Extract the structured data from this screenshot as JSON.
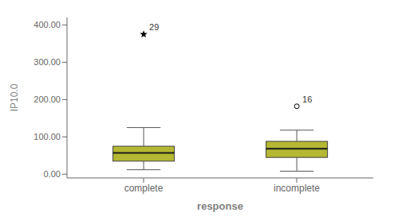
{
  "chart_data": {
    "type": "box",
    "categories": [
      "complete",
      "incomplete"
    ],
    "xlabel": "response",
    "ylabel": "IP10.0",
    "ylim": [
      -10,
      420
    ],
    "yticks": [
      {
        "value": 0,
        "label": "0.00"
      },
      {
        "value": 100,
        "label": "100.00"
      },
      {
        "value": 200,
        "label": "200.00"
      },
      {
        "value": 300,
        "label": "300.00"
      },
      {
        "value": 400,
        "label": "400.00"
      }
    ],
    "color": "#b5b832",
    "grid": false,
    "boxes": [
      {
        "q1": 35,
        "median": 57,
        "q3": 75,
        "whisker_low": 12,
        "whisker_high": 125,
        "outliers": [
          {
            "value": 375,
            "label": "29",
            "marker": "star"
          }
        ]
      },
      {
        "q1": 45,
        "median": 68,
        "q3": 88,
        "whisker_low": 8,
        "whisker_high": 118,
        "outliers": [
          {
            "value": 182,
            "label": "16",
            "marker": "circle"
          }
        ]
      }
    ]
  }
}
